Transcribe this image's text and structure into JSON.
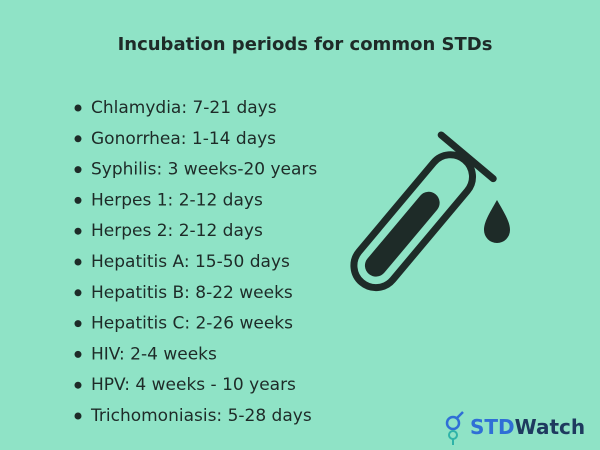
{
  "title": "Incubation periods for common STDs",
  "items": [
    "Chlamydia: 7-21 days",
    "Gonorrhea: 1-14 days",
    "Syphilis: 3 weeks-20 years",
    "Herpes 1: 2-12 days",
    "Herpes 2: 2-12 days",
    "Hepatitis A: 15-50 days",
    "Hepatitis B: 8-22 weeks",
    "Hepatitis C: 2-26 weeks",
    "HIV: 2-4 weeks",
    "HPV: 4 weeks - 10 years",
    "Trichomoniasis: 5-28 days"
  ],
  "logo": {
    "part1": "STD",
    "part2": "Watch"
  }
}
